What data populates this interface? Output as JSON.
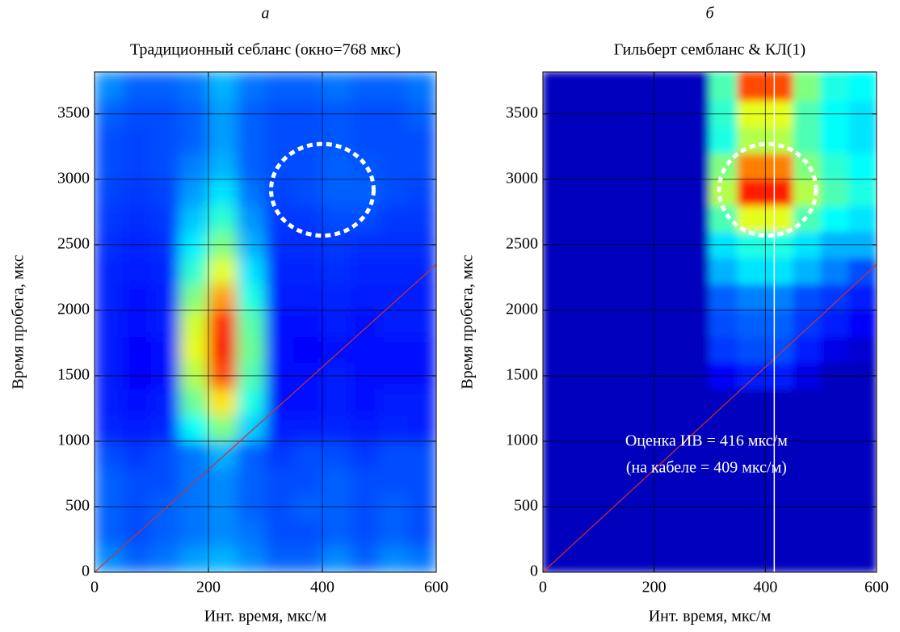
{
  "chart_data": [
    {
      "type": "heatmap",
      "letter": "а",
      "title": "Традиционный себланс (окно=768 мкс)",
      "xlabel": "Инт. время, мкс/м",
      "ylabel": "Время пробега, мкс",
      "xlim": [
        0,
        600
      ],
      "ylim": [
        0,
        3820
      ],
      "xticks": [
        0,
        200,
        400,
        600
      ],
      "yticks": [
        0,
        500,
        1000,
        1500,
        2000,
        2500,
        3000,
        3500
      ],
      "grid": true,
      "colormap": "jet",
      "x_bins": [
        0,
        50,
        100,
        150,
        200,
        250,
        300,
        350,
        400,
        450,
        500,
        550,
        600
      ],
      "y_bins": [
        0,
        200,
        400,
        600,
        800,
        1000,
        1200,
        1400,
        1600,
        1800,
        2000,
        2200,
        2400,
        2600,
        2800,
        3000,
        3200,
        3400,
        3600,
        3820
      ],
      "z": [
        [
          0.26,
          0.22,
          0.24,
          0.28,
          0.3,
          0.26,
          0.22,
          0.22,
          0.26,
          0.22,
          0.26,
          0.24
        ],
        [
          0.22,
          0.2,
          0.22,
          0.24,
          0.26,
          0.24,
          0.2,
          0.2,
          0.22,
          0.2,
          0.22,
          0.2
        ],
        [
          0.22,
          0.2,
          0.22,
          0.24,
          0.26,
          0.22,
          0.2,
          0.22,
          0.22,
          0.2,
          0.22,
          0.2
        ],
        [
          0.22,
          0.2,
          0.2,
          0.24,
          0.26,
          0.22,
          0.2,
          0.2,
          0.22,
          0.2,
          0.2,
          0.2
        ],
        [
          0.2,
          0.18,
          0.2,
          0.24,
          0.3,
          0.22,
          0.18,
          0.2,
          0.2,
          0.18,
          0.2,
          0.2
        ],
        [
          0.16,
          0.15,
          0.16,
          0.38,
          0.5,
          0.33,
          0.15,
          0.15,
          0.16,
          0.15,
          0.16,
          0.15
        ],
        [
          0.15,
          0.14,
          0.15,
          0.48,
          0.65,
          0.4,
          0.14,
          0.14,
          0.15,
          0.14,
          0.15,
          0.15
        ],
        [
          0.15,
          0.13,
          0.14,
          0.55,
          0.8,
          0.45,
          0.14,
          0.14,
          0.15,
          0.14,
          0.14,
          0.14
        ],
        [
          0.15,
          0.13,
          0.14,
          0.6,
          0.88,
          0.48,
          0.14,
          0.13,
          0.14,
          0.14,
          0.14,
          0.14
        ],
        [
          0.15,
          0.14,
          0.15,
          0.58,
          0.85,
          0.46,
          0.14,
          0.14,
          0.15,
          0.14,
          0.15,
          0.15
        ],
        [
          0.16,
          0.14,
          0.15,
          0.5,
          0.72,
          0.4,
          0.15,
          0.15,
          0.16,
          0.15,
          0.15,
          0.15
        ],
        [
          0.16,
          0.15,
          0.16,
          0.42,
          0.6,
          0.35,
          0.16,
          0.16,
          0.17,
          0.16,
          0.16,
          0.16
        ],
        [
          0.17,
          0.16,
          0.17,
          0.36,
          0.5,
          0.3,
          0.17,
          0.17,
          0.18,
          0.17,
          0.17,
          0.17
        ],
        [
          0.18,
          0.17,
          0.18,
          0.32,
          0.42,
          0.27,
          0.18,
          0.18,
          0.2,
          0.2,
          0.18,
          0.18
        ],
        [
          0.19,
          0.18,
          0.19,
          0.28,
          0.35,
          0.24,
          0.19,
          0.2,
          0.22,
          0.22,
          0.2,
          0.19
        ],
        [
          0.2,
          0.19,
          0.2,
          0.25,
          0.3,
          0.22,
          0.2,
          0.2,
          0.22,
          0.21,
          0.2,
          0.2
        ],
        [
          0.2,
          0.19,
          0.2,
          0.22,
          0.28,
          0.22,
          0.2,
          0.2,
          0.21,
          0.2,
          0.2,
          0.2
        ],
        [
          0.22,
          0.2,
          0.2,
          0.22,
          0.28,
          0.22,
          0.2,
          0.2,
          0.21,
          0.2,
          0.2,
          0.22
        ],
        [
          0.26,
          0.22,
          0.22,
          0.24,
          0.3,
          0.24,
          0.22,
          0.22,
          0.24,
          0.22,
          0.22,
          0.24
        ]
      ],
      "line": {
        "x": [
          0,
          600
        ],
        "y": [
          0,
          2350
        ],
        "color": "#d03030"
      },
      "circle": {
        "x": 400,
        "y": 2920,
        "rx": 90,
        "ry": 350,
        "color": "#ffffff"
      }
    },
    {
      "type": "heatmap",
      "letter": "б",
      "title": "Гильберт сембланс & КЛ(1)",
      "xlabel": "Инт. время, мкс/м",
      "ylabel": "Время пробега, мкс",
      "xlim": [
        0,
        600
      ],
      "ylim": [
        0,
        3820
      ],
      "xticks": [
        0,
        200,
        400,
        600
      ],
      "yticks": [
        0,
        500,
        1000,
        1500,
        2000,
        2500,
        3000,
        3500
      ],
      "grid": true,
      "colormap": "jet",
      "x_bins": [
        0,
        50,
        100,
        150,
        200,
        250,
        300,
        350,
        400,
        450,
        500,
        550,
        600
      ],
      "y_bins": [
        0,
        200,
        400,
        600,
        800,
        1000,
        1200,
        1400,
        1600,
        1800,
        2000,
        2200,
        2400,
        2600,
        2800,
        3000,
        3200,
        3400,
        3600,
        3820
      ],
      "z": [
        [
          0.06,
          0.06,
          0.06,
          0.06,
          0.06,
          0.06,
          0.06,
          0.06,
          0.06,
          0.06,
          0.06,
          0.06
        ],
        [
          0.06,
          0.06,
          0.06,
          0.06,
          0.06,
          0.06,
          0.06,
          0.06,
          0.06,
          0.06,
          0.06,
          0.06
        ],
        [
          0.06,
          0.06,
          0.06,
          0.06,
          0.06,
          0.06,
          0.06,
          0.06,
          0.06,
          0.06,
          0.06,
          0.06
        ],
        [
          0.06,
          0.06,
          0.06,
          0.06,
          0.06,
          0.06,
          0.06,
          0.06,
          0.06,
          0.06,
          0.06,
          0.06
        ],
        [
          0.06,
          0.06,
          0.06,
          0.06,
          0.06,
          0.06,
          0.06,
          0.06,
          0.06,
          0.06,
          0.06,
          0.06
        ],
        [
          0.06,
          0.06,
          0.06,
          0.06,
          0.06,
          0.06,
          0.06,
          0.06,
          0.06,
          0.06,
          0.06,
          0.06
        ],
        [
          0.06,
          0.06,
          0.06,
          0.06,
          0.06,
          0.06,
          0.06,
          0.06,
          0.06,
          0.06,
          0.06,
          0.06
        ],
        [
          0.06,
          0.06,
          0.06,
          0.06,
          0.06,
          0.06,
          0.12,
          0.15,
          0.15,
          0.1,
          0.06,
          0.06
        ],
        [
          0.06,
          0.06,
          0.06,
          0.06,
          0.06,
          0.06,
          0.18,
          0.2,
          0.2,
          0.15,
          0.1,
          0.08
        ],
        [
          0.06,
          0.06,
          0.06,
          0.06,
          0.06,
          0.06,
          0.2,
          0.22,
          0.22,
          0.18,
          0.15,
          0.12
        ],
        [
          0.06,
          0.06,
          0.06,
          0.06,
          0.06,
          0.06,
          0.22,
          0.25,
          0.25,
          0.2,
          0.18,
          0.15
        ],
        [
          0.06,
          0.06,
          0.06,
          0.06,
          0.06,
          0.06,
          0.3,
          0.35,
          0.35,
          0.3,
          0.25,
          0.2
        ],
        [
          0.06,
          0.06,
          0.06,
          0.06,
          0.06,
          0.06,
          0.35,
          0.4,
          0.4,
          0.35,
          0.3,
          0.3
        ],
        [
          0.06,
          0.06,
          0.06,
          0.06,
          0.06,
          0.06,
          0.45,
          0.6,
          0.6,
          0.45,
          0.38,
          0.35
        ],
        [
          0.06,
          0.06,
          0.06,
          0.06,
          0.06,
          0.06,
          0.55,
          0.85,
          0.85,
          0.55,
          0.45,
          0.4
        ],
        [
          0.06,
          0.06,
          0.06,
          0.06,
          0.06,
          0.06,
          0.5,
          0.75,
          0.75,
          0.5,
          0.42,
          0.38
        ],
        [
          0.06,
          0.06,
          0.06,
          0.06,
          0.06,
          0.06,
          0.4,
          0.55,
          0.55,
          0.45,
          0.38,
          0.35
        ],
        [
          0.06,
          0.06,
          0.06,
          0.06,
          0.06,
          0.06,
          0.42,
          0.6,
          0.6,
          0.45,
          0.38,
          0.35
        ],
        [
          0.06,
          0.06,
          0.06,
          0.06,
          0.06,
          0.06,
          0.45,
          0.8,
          0.8,
          0.5,
          0.4,
          0.38
        ]
      ],
      "line": {
        "x": [
          0,
          600
        ],
        "y": [
          0,
          2350
        ],
        "color": "#d03030"
      },
      "circle": {
        "x": 404,
        "y": 2920,
        "rx": 87,
        "ry": 350,
        "color": "#ffffff"
      },
      "vline": {
        "x": 416,
        "color": "#ffffff"
      },
      "annotation": [
        "Оценка ИВ = 416 мкс/м",
        "(на кабеле = 409 мкс/м)"
      ]
    }
  ]
}
